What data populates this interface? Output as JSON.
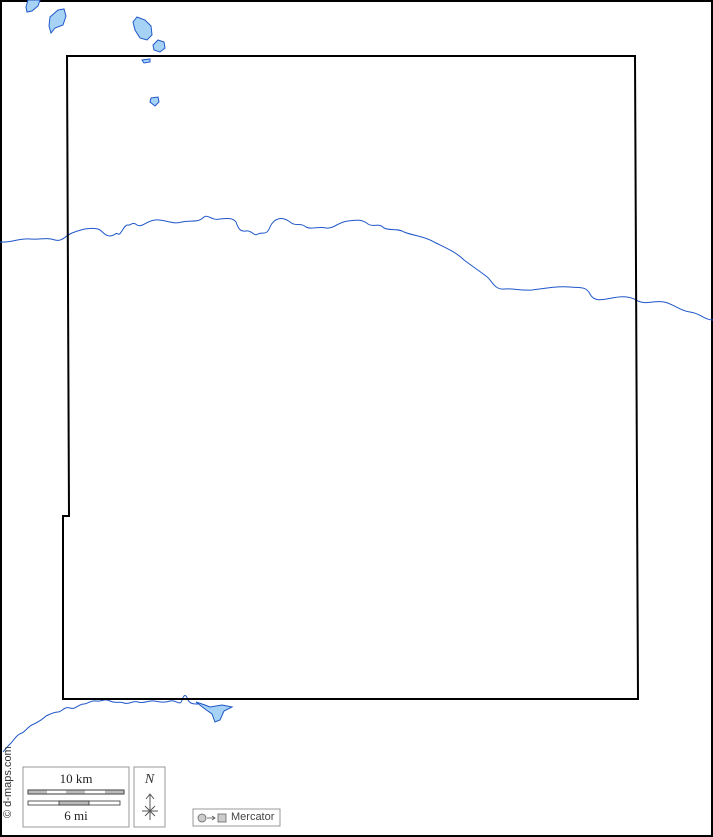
{
  "map": {
    "credit": "© d-maps.com",
    "scale": {
      "km_label": "10 km",
      "mi_label": "6 mi"
    },
    "north_label": "N",
    "projection_label": "Mercator",
    "colors": {
      "water_fill": "#a6d3f5",
      "water_stroke": "#1f57c8",
      "boundary": "#000000",
      "frame": "#000000"
    }
  }
}
